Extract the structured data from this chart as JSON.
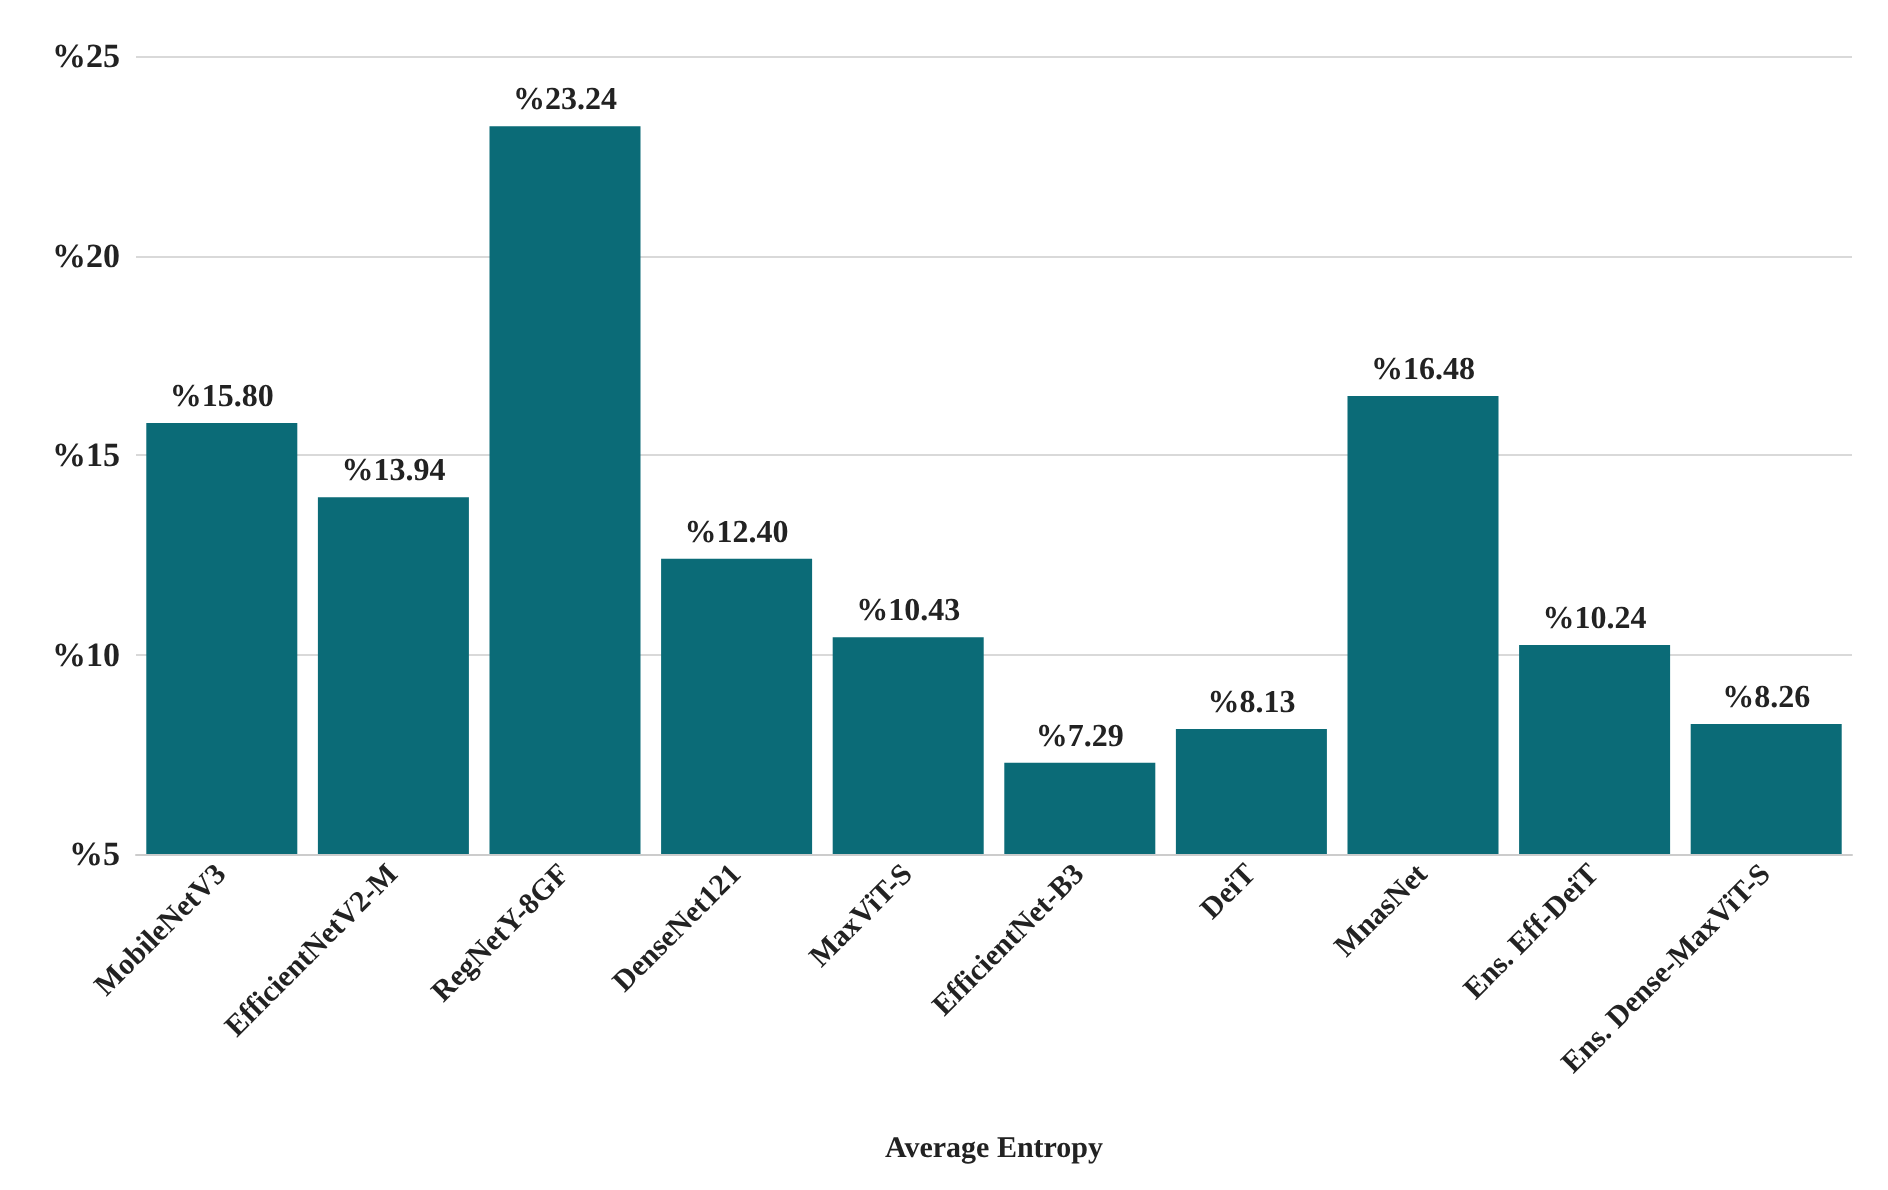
{
  "chart_data": {
    "type": "bar",
    "xlabel": "Average Entropy",
    "categories": [
      "MobileNetV3",
      "EfficientNetV2-M",
      "RegNetY-8GF",
      "DenseNet121",
      "MaxViT-S",
      "EfficientNet-B3",
      "DeiT",
      "MnasNet",
      "Ens. Eff-DeiT",
      "Ens. Dense-MaxViT-S"
    ],
    "values": [
      15.8,
      13.94,
      23.24,
      12.4,
      10.43,
      7.29,
      8.13,
      16.48,
      10.24,
      8.26
    ],
    "value_labels": [
      "%15.80",
      "%13.94",
      "%23.24",
      "%12.40",
      "%10.43",
      "%7.29",
      "%8.13",
      "%16.48",
      "%10.24",
      "%8.26"
    ],
    "color": "#0b6b77",
    "ylim": [
      5,
      25
    ],
    "yticks": [
      {
        "value": 5,
        "label": "%5"
      },
      {
        "value": 10,
        "label": "%10"
      },
      {
        "value": 15,
        "label": "%15"
      },
      {
        "value": 20,
        "label": "%20"
      },
      {
        "value": 25,
        "label": "%25"
      }
    ],
    "grid": "y"
  }
}
